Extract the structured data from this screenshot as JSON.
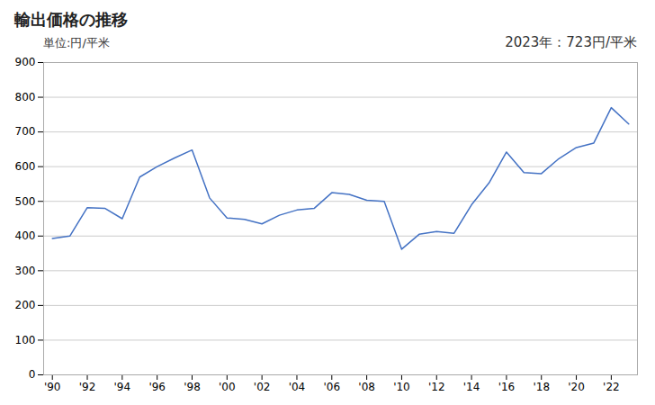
{
  "chart_data": {
    "type": "line",
    "title": "輸出価格の推移",
    "ylabel": "単位:円/平米",
    "annotation": "2023年：723円/平米",
    "x": [
      1990,
      1991,
      1992,
      1993,
      1994,
      1995,
      1996,
      1997,
      1998,
      1999,
      2000,
      2001,
      2002,
      2003,
      2004,
      2005,
      2006,
      2007,
      2008,
      2009,
      2010,
      2011,
      2012,
      2013,
      2014,
      2015,
      2016,
      2017,
      2018,
      2019,
      2020,
      2021,
      2022,
      2023
    ],
    "values": [
      393,
      400,
      482,
      480,
      450,
      570,
      600,
      625,
      648,
      510,
      452,
      448,
      435,
      460,
      475,
      480,
      525,
      520,
      503,
      500,
      362,
      405,
      413,
      408,
      490,
      553,
      642,
      583,
      580,
      623,
      655,
      668,
      770,
      723
    ],
    "color": "#4472c4",
    "xlim": [
      1989.5,
      2023.5
    ],
    "xticks": [
      {
        "value": 1990,
        "label": "'90"
      },
      {
        "value": 1992,
        "label": "'92"
      },
      {
        "value": 1994,
        "label": "'94"
      },
      {
        "value": 1996,
        "label": "'96"
      },
      {
        "value": 1998,
        "label": "'98"
      },
      {
        "value": 2000,
        "label": "'00"
      },
      {
        "value": 2002,
        "label": "'02"
      },
      {
        "value": 2004,
        "label": "'04"
      },
      {
        "value": 2006,
        "label": "'06"
      },
      {
        "value": 2008,
        "label": "'08"
      },
      {
        "value": 2010,
        "label": "'10"
      },
      {
        "value": 2012,
        "label": "'12"
      },
      {
        "value": 2014,
        "label": "'14"
      },
      {
        "value": 2016,
        "label": "'16"
      },
      {
        "value": 2018,
        "label": "'18"
      },
      {
        "value": 2020,
        "label": "'20"
      },
      {
        "value": 2022,
        "label": "'22"
      }
    ],
    "ylim": [
      0,
      900
    ],
    "yticks": [
      0,
      100,
      200,
      300,
      400,
      500,
      600,
      700,
      800,
      900
    ],
    "grid": "y"
  }
}
